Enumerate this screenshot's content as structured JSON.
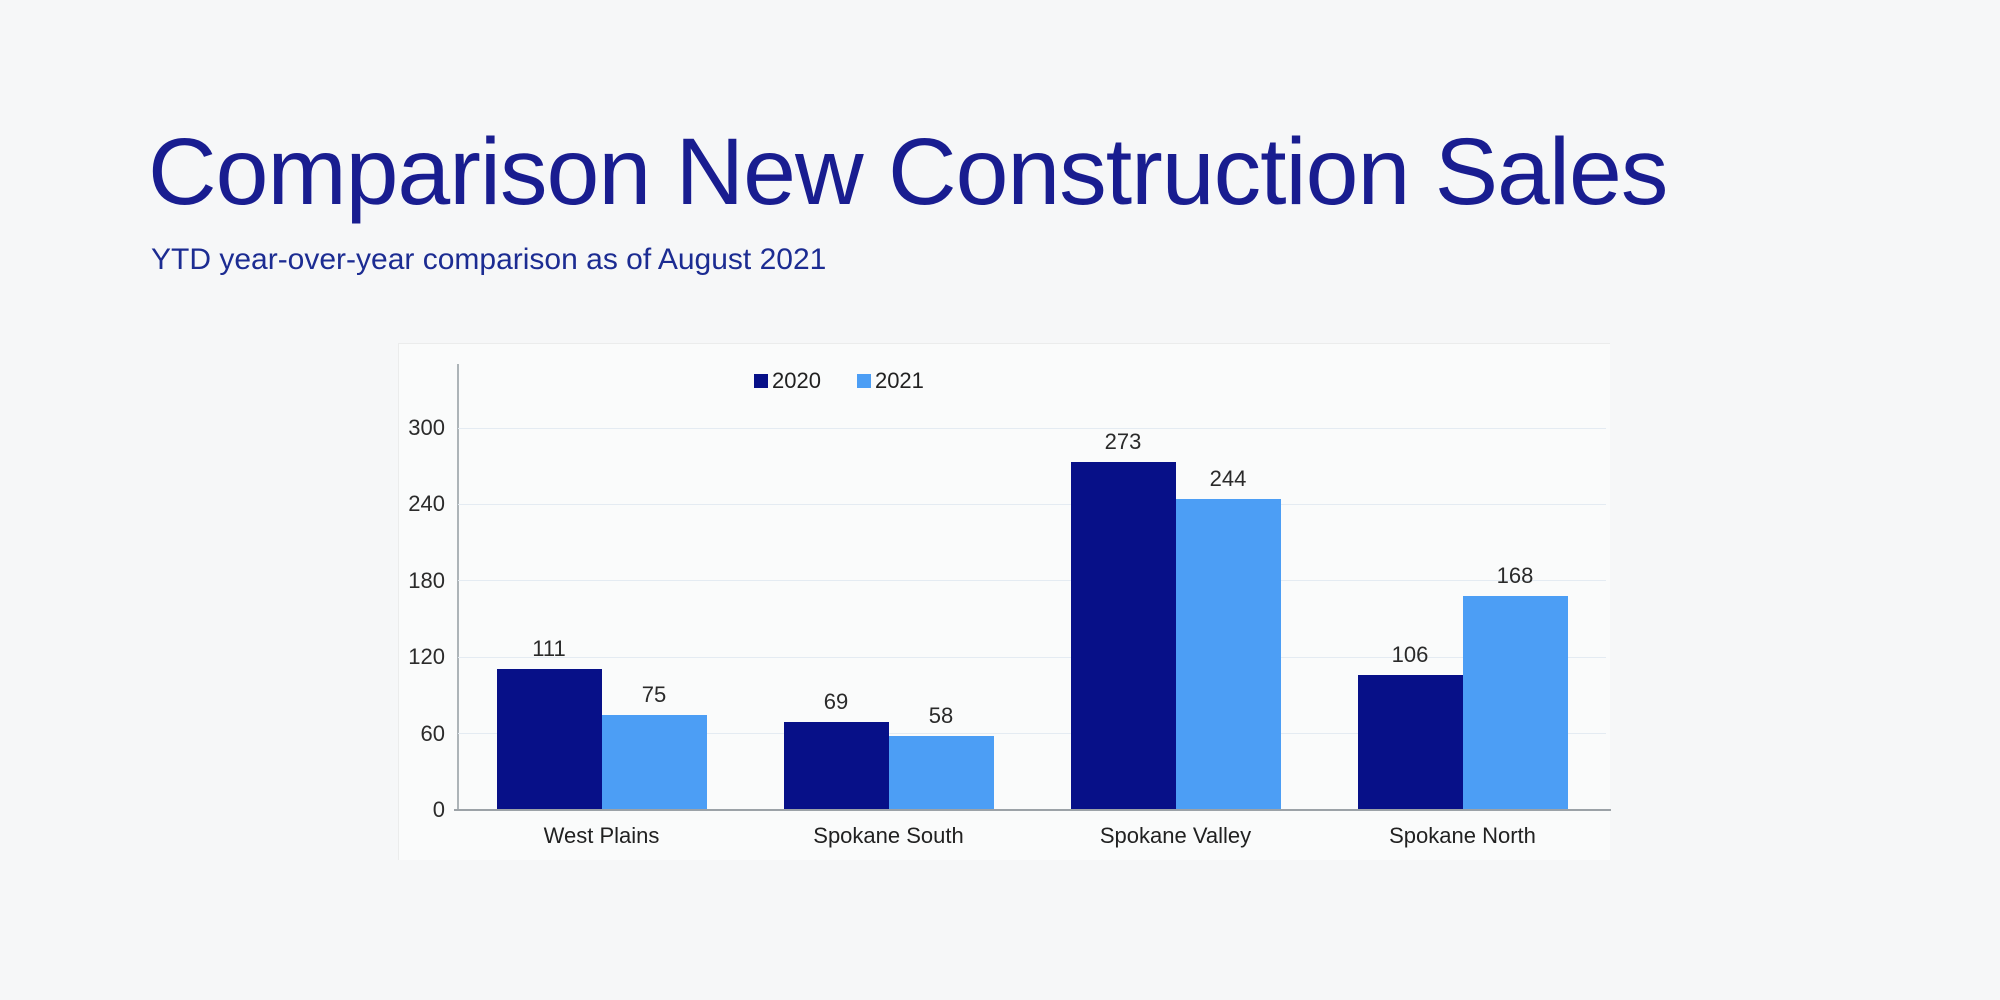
{
  "slide": {
    "title": "Comparison New Construction Sales",
    "subtitle": "YTD year-over-year comparison as of August 2021",
    "title_color": "#191d90",
    "subtitle_color": "#1c2c92",
    "background_color": "#f6f7f8"
  },
  "chart_data": {
    "type": "bar",
    "title": "",
    "xlabel": "",
    "ylabel": "",
    "categories": [
      "West Plains",
      "Spokane South",
      "Spokane Valley",
      "Spokane North"
    ],
    "series": [
      {
        "name": "2020",
        "color": "#071088",
        "values": [
          111,
          69,
          273,
          106
        ]
      },
      {
        "name": "2021",
        "color": "#4c9ef5",
        "values": [
          75,
          58,
          244,
          168
        ]
      }
    ],
    "yticks": [
      0,
      60,
      120,
      180,
      240,
      300
    ],
    "ylim": [
      0,
      300
    ],
    "grid": true,
    "value_labels_shown": true,
    "legend_position": "top",
    "gridline_color": "#e4ebf2",
    "axis_line_color": "#adb4b8",
    "baseline_color": "#9ca2a7",
    "tick_label_color": "#2b2b2b"
  }
}
